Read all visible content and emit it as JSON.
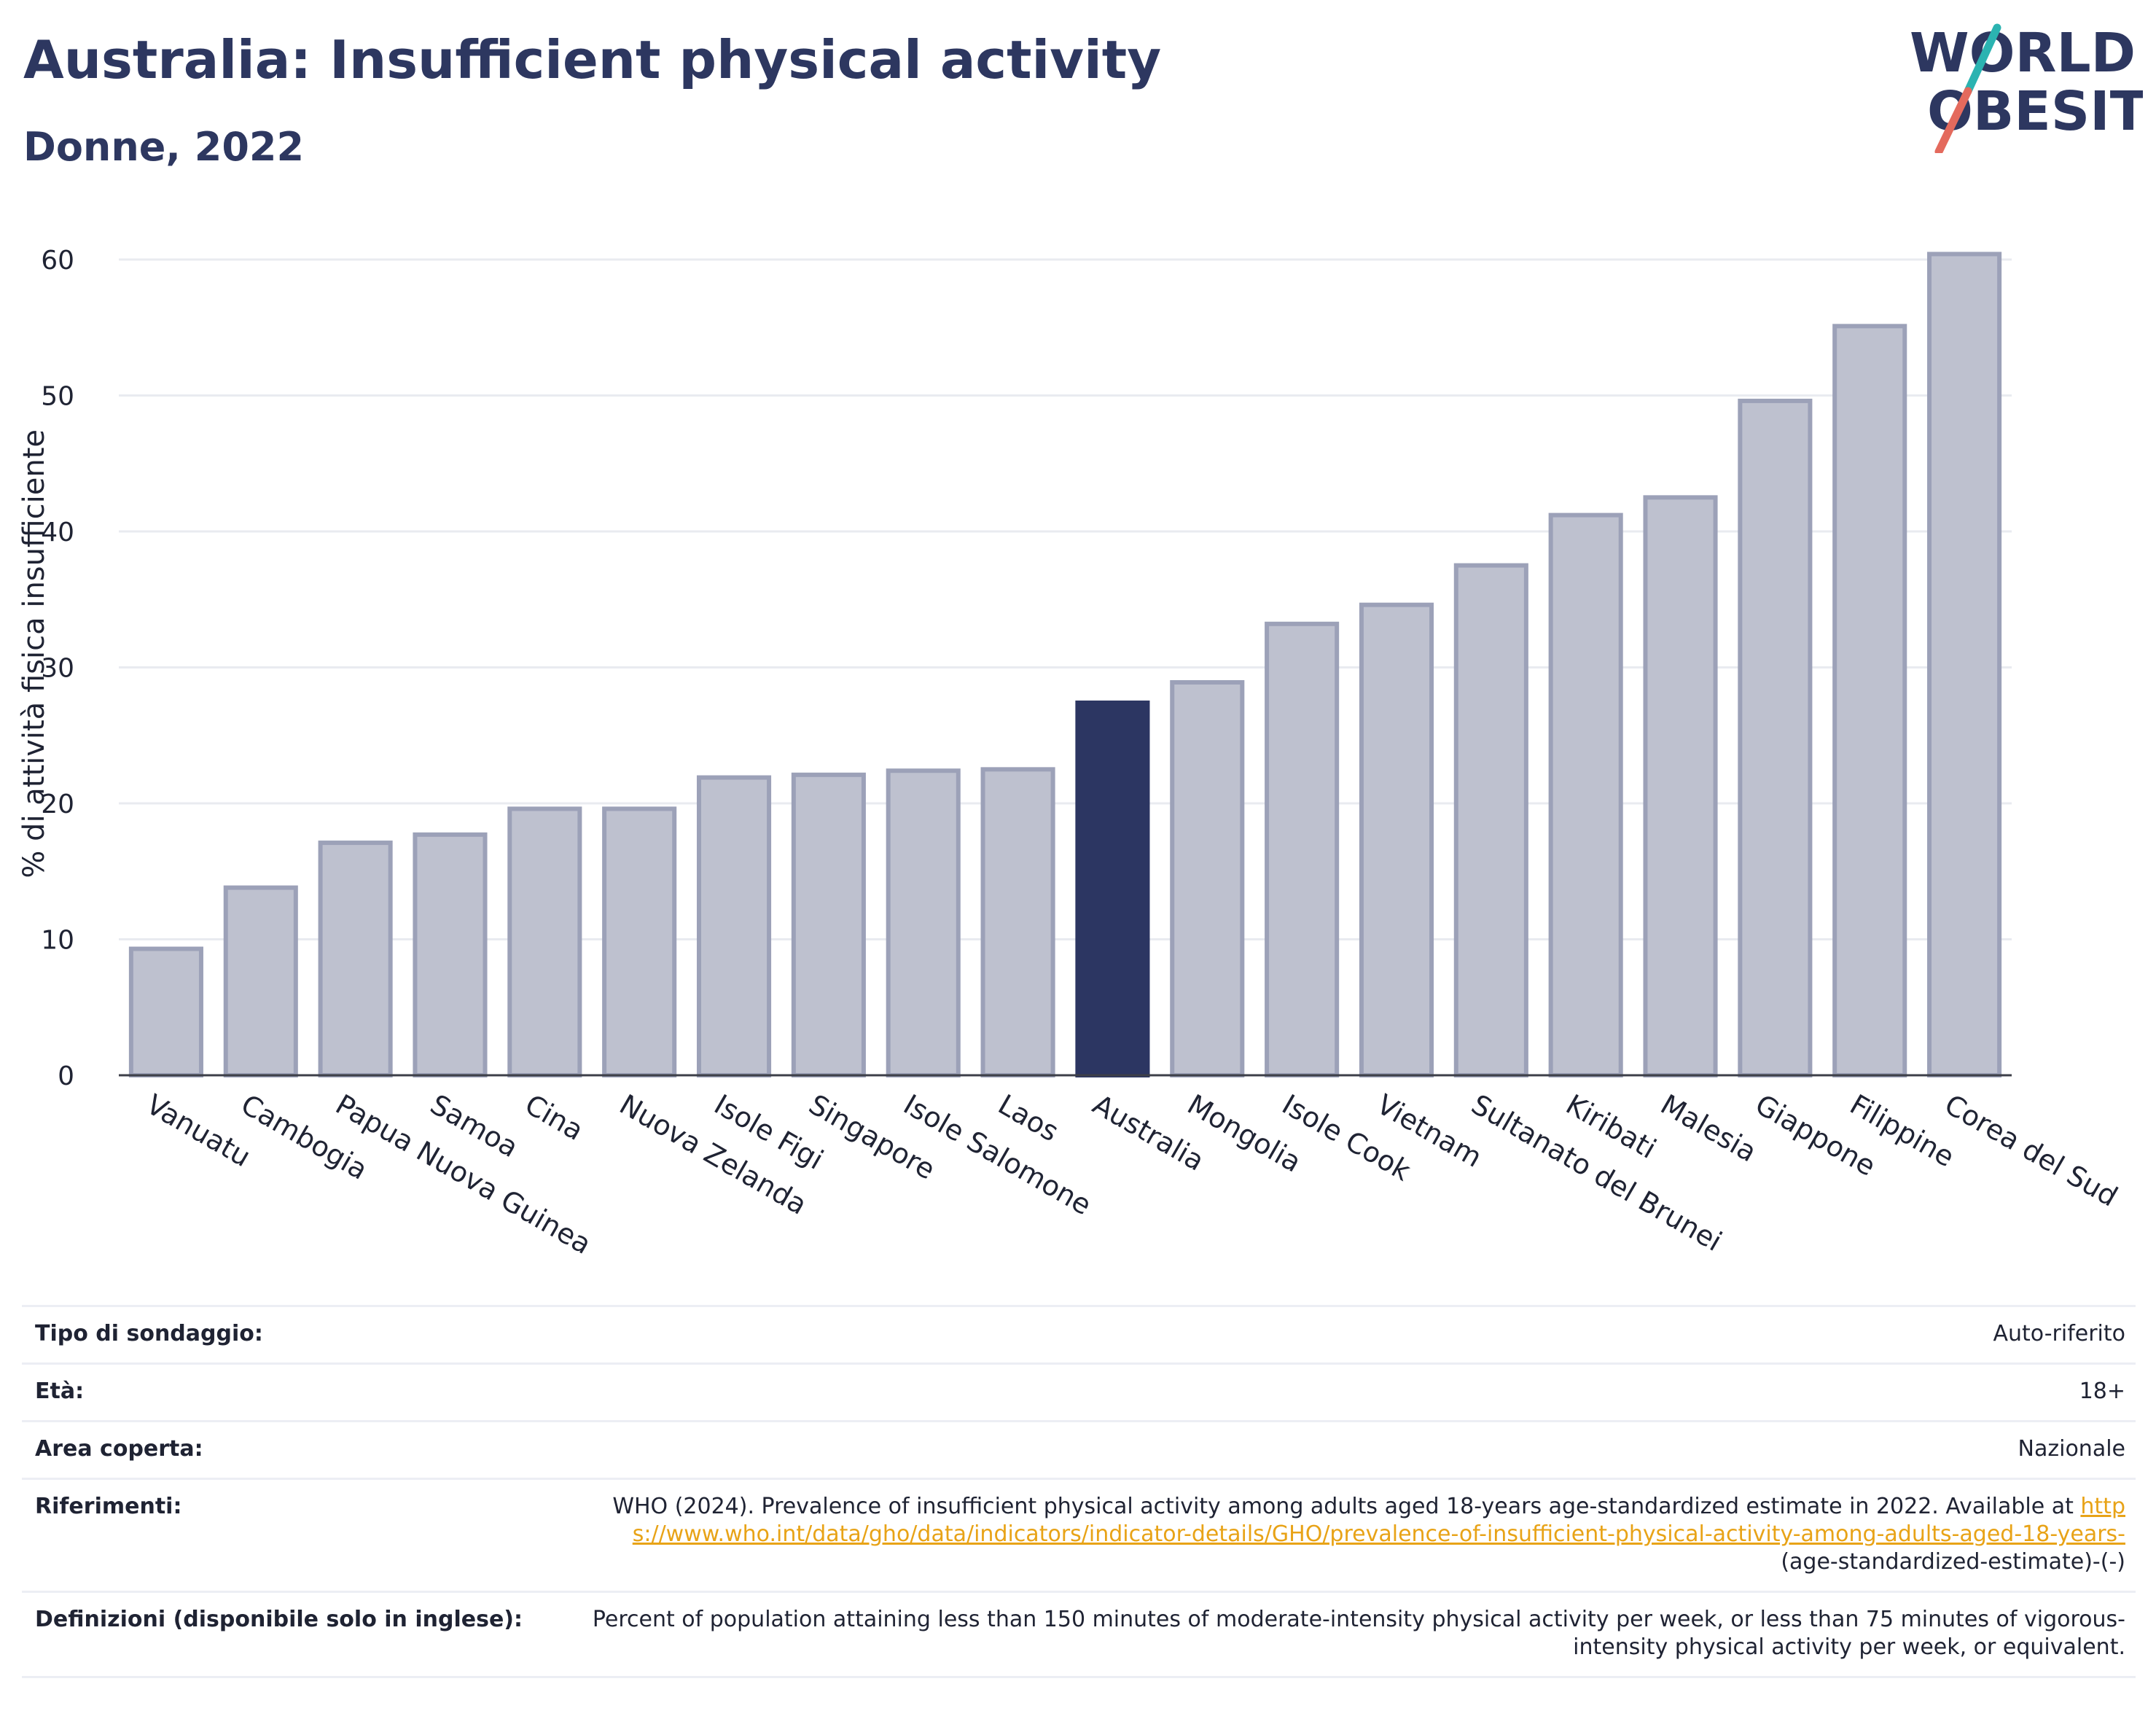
{
  "header": {
    "title": "Australia: Insufficient physical activity",
    "subtitle": "Donne, 2022"
  },
  "logo": {
    "line1": "WORLD",
    "line2": "OBESITY"
  },
  "colors": {
    "highlight": "#2c3662",
    "bar_fill": "#bec1cf",
    "bar_stroke": "#9ca1b8",
    "grid": "#e9ebf0",
    "axis": "#3d3f48",
    "logo_slash_teal": "#2bb3b1",
    "logo_slash_coral": "#e46a5d",
    "link": "#e8a317"
  },
  "chart_data": {
    "type": "bar",
    "categories": [
      "Vanuatu",
      "Cambogia",
      "Papua Nuova Guinea",
      "Samoa",
      "Cina",
      "Nuova Zelanda",
      "Isole Figi",
      "Singapore",
      "Isole Salomone",
      "Laos",
      "Australia",
      "Mongolia",
      "Isole Cook",
      "Vietnam",
      "Sultanato del Brunei",
      "Kiribati",
      "Malesia",
      "Giappone",
      "Filippine",
      "Corea del Sud"
    ],
    "values": [
      9.3,
      13.8,
      17.1,
      17.7,
      19.6,
      19.6,
      21.9,
      22.1,
      22.4,
      22.5,
      27.4,
      28.9,
      33.2,
      34.6,
      37.5,
      41.2,
      42.5,
      49.6,
      55.1,
      60.4
    ],
    "highlight": "Australia",
    "ylabel": "% di attività fisica insufficiente",
    "xlabel": "",
    "ylim": [
      0,
      63
    ],
    "yticks": [
      0,
      10,
      20,
      30,
      40,
      50,
      60
    ],
    "grid": true
  },
  "meta": [
    {
      "key": "Tipo di sondaggio:",
      "value": "Auto-riferito"
    },
    {
      "key": "Età:",
      "value": "18+"
    },
    {
      "key": "Area coperta:",
      "value": "Nazionale"
    },
    {
      "key": "Riferimenti:",
      "value": "WHO (2024). Prevalence of insufficient physical activity among adults aged 18-years age-standardized estimate in 2022. Available at",
      "link": "https://www.who.int/data/gho/data/indicators/indicator-details/GHO/prevalence-of-insufficient-physical-activity-among-adults-aged-18-years-",
      "suffix": "(age-standardized-estimate)-(-)"
    },
    {
      "key": "Definizioni (disponibile solo in inglese):",
      "value": "Percent of population attaining less than 150 minutes of moderate-intensity physical activity per week, or less than 75 minutes of vigorous-intensity physical activity per week, or equivalent."
    }
  ]
}
